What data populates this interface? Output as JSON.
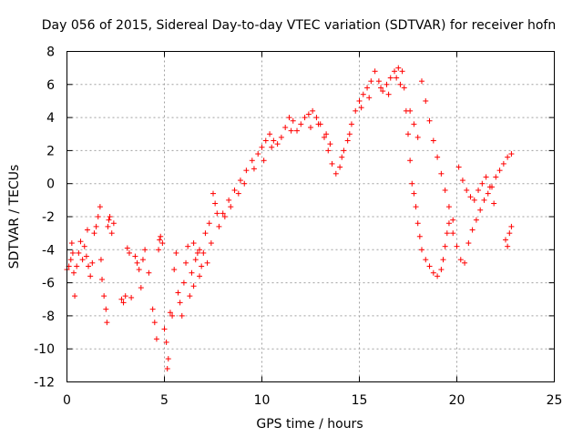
{
  "chart_data": {
    "type": "scatter",
    "title": "Day 056 of 2015, Sidereal Day-to-day VTEC variation (SDTVAR) for receiver hofn",
    "xlabel": "GPS time / hours",
    "ylabel": "SDTVAR / TECUs",
    "xlim": [
      0,
      25
    ],
    "ylim": [
      -12,
      8
    ],
    "x_ticks": [
      0,
      5,
      10,
      15,
      20,
      25
    ],
    "y_ticks": [
      -12,
      -10,
      -8,
      -6,
      -4,
      -2,
      0,
      2,
      4,
      6,
      8
    ],
    "grid": true,
    "marker": "+",
    "color": "#ff0000",
    "series": [
      {
        "name": "SDTVAR hofn",
        "points": [
          [
            0.0,
            -5.2
          ],
          [
            0.1,
            -5.0
          ],
          [
            0.2,
            -4.6
          ],
          [
            0.3,
            -4.2
          ],
          [
            0.35,
            -5.4
          ],
          [
            0.4,
            -6.8
          ],
          [
            0.5,
            -5.0
          ],
          [
            0.6,
            -4.2
          ],
          [
            0.7,
            -3.5
          ],
          [
            0.8,
            -4.6
          ],
          [
            0.9,
            -3.8
          ],
          [
            1.0,
            -4.4
          ],
          [
            1.1,
            -5.0
          ],
          [
            1.2,
            -5.6
          ],
          [
            1.3,
            -4.8
          ],
          [
            1.4,
            -3.0
          ],
          [
            1.5,
            -2.6
          ],
          [
            1.6,
            -2.0
          ],
          [
            1.7,
            -1.4
          ],
          [
            1.75,
            -4.6
          ],
          [
            1.8,
            -5.8
          ],
          [
            1.9,
            -6.8
          ],
          [
            2.0,
            -7.6
          ],
          [
            2.05,
            -8.4
          ],
          [
            2.1,
            -2.6
          ],
          [
            2.15,
            -2.2
          ],
          [
            2.2,
            -2.0
          ],
          [
            2.3,
            -3.0
          ],
          [
            2.8,
            -7.0
          ],
          [
            2.9,
            -7.2
          ],
          [
            3.0,
            -6.8
          ],
          [
            3.1,
            -3.9
          ],
          [
            3.2,
            -4.2
          ],
          [
            3.5,
            -4.4
          ],
          [
            3.6,
            -4.8
          ],
          [
            3.7,
            -5.2
          ],
          [
            3.8,
            -6.3
          ],
          [
            3.9,
            -4.6
          ],
          [
            4.0,
            -4.0
          ],
          [
            4.2,
            -5.4
          ],
          [
            4.4,
            -7.6
          ],
          [
            4.5,
            -8.4
          ],
          [
            4.6,
            -9.4
          ],
          [
            4.7,
            -4.0
          ],
          [
            4.75,
            -3.4
          ],
          [
            4.8,
            -3.2
          ],
          [
            4.9,
            -3.6
          ],
          [
            5.0,
            -8.8
          ],
          [
            5.1,
            -9.6
          ],
          [
            5.15,
            -11.2
          ],
          [
            5.2,
            -10.6
          ],
          [
            5.3,
            -7.8
          ],
          [
            5.4,
            -8.0
          ],
          [
            5.5,
            -5.2
          ],
          [
            5.6,
            -4.2
          ],
          [
            5.7,
            -6.6
          ],
          [
            5.8,
            -7.2
          ],
          [
            5.9,
            -8.0
          ],
          [
            6.0,
            -6.0
          ],
          [
            6.1,
            -4.8
          ],
          [
            6.2,
            -3.8
          ],
          [
            6.3,
            -6.8
          ],
          [
            6.4,
            -5.4
          ],
          [
            6.5,
            -6.2
          ],
          [
            6.6,
            -4.6
          ],
          [
            6.7,
            -4.2
          ],
          [
            6.8,
            -5.6
          ],
          [
            6.9,
            -5.0
          ],
          [
            7.0,
            -4.2
          ],
          [
            7.2,
            -4.8
          ],
          [
            7.4,
            -3.6
          ],
          [
            7.5,
            -0.6
          ],
          [
            7.6,
            -1.2
          ],
          [
            7.8,
            -2.6
          ],
          [
            8.0,
            -1.8
          ],
          [
            8.3,
            -1.0
          ],
          [
            8.6,
            -0.4
          ],
          [
            8.9,
            0.2
          ],
          [
            9.2,
            0.8
          ],
          [
            9.5,
            1.4
          ],
          [
            9.8,
            1.8
          ],
          [
            10.0,
            2.2
          ],
          [
            10.2,
            2.6
          ],
          [
            10.4,
            3.0
          ],
          [
            10.6,
            2.6
          ],
          [
            10.8,
            2.4
          ],
          [
            11.0,
            2.8
          ],
          [
            11.2,
            3.4
          ],
          [
            11.4,
            4.0
          ],
          [
            11.6,
            3.8
          ],
          [
            11.8,
            3.2
          ],
          [
            12.0,
            3.6
          ],
          [
            12.2,
            4.0
          ],
          [
            12.4,
            4.2
          ],
          [
            12.6,
            4.4
          ],
          [
            12.8,
            4.0
          ],
          [
            13.0,
            3.6
          ],
          [
            13.2,
            2.8
          ],
          [
            13.4,
            2.0
          ],
          [
            13.6,
            1.2
          ],
          [
            13.8,
            0.6
          ],
          [
            14.0,
            1.0
          ],
          [
            14.2,
            2.0
          ],
          [
            14.4,
            2.6
          ],
          [
            14.6,
            3.6
          ],
          [
            14.8,
            4.4
          ],
          [
            15.0,
            5.0
          ],
          [
            15.2,
            5.4
          ],
          [
            15.4,
            5.8
          ],
          [
            15.6,
            6.2
          ],
          [
            15.8,
            6.8
          ],
          [
            16.0,
            6.2
          ],
          [
            16.2,
            5.6
          ],
          [
            16.4,
            6.0
          ],
          [
            16.6,
            6.4
          ],
          [
            16.8,
            6.8
          ],
          [
            17.0,
            7.0
          ],
          [
            17.2,
            6.8
          ],
          [
            17.3,
            5.8
          ],
          [
            17.4,
            4.4
          ],
          [
            17.5,
            3.0
          ],
          [
            17.6,
            1.4
          ],
          [
            17.7,
            0.0
          ],
          [
            17.8,
            -0.6
          ],
          [
            17.9,
            -1.4
          ],
          [
            18.0,
            -2.4
          ],
          [
            18.1,
            -3.2
          ],
          [
            18.2,
            -4.0
          ],
          [
            18.4,
            -4.6
          ],
          [
            18.6,
            -5.0
          ],
          [
            18.8,
            -5.4
          ],
          [
            19.0,
            -5.6
          ],
          [
            19.2,
            -5.2
          ],
          [
            19.3,
            -4.6
          ],
          [
            19.4,
            -3.8
          ],
          [
            19.5,
            -3.0
          ],
          [
            19.6,
            -2.4
          ],
          [
            19.8,
            -3.0
          ],
          [
            20.0,
            -3.8
          ],
          [
            20.2,
            -4.6
          ],
          [
            20.4,
            -4.8
          ],
          [
            20.6,
            -3.6
          ],
          [
            20.8,
            -2.8
          ],
          [
            21.0,
            -2.2
          ],
          [
            21.2,
            -1.6
          ],
          [
            21.4,
            -1.0
          ],
          [
            21.6,
            -0.6
          ],
          [
            21.8,
            -0.2
          ],
          [
            22.0,
            0.4
          ],
          [
            22.2,
            0.8
          ],
          [
            22.4,
            1.2
          ],
          [
            22.6,
            1.6
          ],
          [
            22.8,
            1.8
          ],
          [
            22.5,
            -3.4
          ],
          [
            22.6,
            -3.8
          ],
          [
            22.7,
            -3.0
          ],
          [
            22.8,
            -2.6
          ],
          [
            18.2,
            6.2
          ],
          [
            18.4,
            5.0
          ],
          [
            18.6,
            3.8
          ],
          [
            18.8,
            2.6
          ],
          [
            19.0,
            1.6
          ],
          [
            19.2,
            0.6
          ],
          [
            19.4,
            -0.4
          ],
          [
            19.6,
            -1.4
          ],
          [
            19.8,
            -2.2
          ],
          [
            17.6,
            4.4
          ],
          [
            17.8,
            3.6
          ],
          [
            18.0,
            2.8
          ],
          [
            16.9,
            6.4
          ],
          [
            20.1,
            1.0
          ],
          [
            20.3,
            0.2
          ],
          [
            20.5,
            -0.4
          ],
          [
            20.7,
            -0.8
          ],
          [
            20.9,
            -1.0
          ],
          [
            21.1,
            -0.4
          ],
          [
            21.3,
            0.0
          ],
          [
            21.5,
            0.4
          ],
          [
            21.7,
            -0.2
          ],
          [
            21.9,
            -1.2
          ],
          [
            6.5,
            -3.6
          ],
          [
            6.8,
            -4.0
          ],
          [
            7.1,
            -3.0
          ],
          [
            7.3,
            -2.4
          ],
          [
            7.7,
            -1.8
          ],
          [
            8.1,
            -2.0
          ],
          [
            8.4,
            -1.4
          ],
          [
            8.8,
            -0.6
          ],
          [
            9.1,
            0.0
          ],
          [
            9.6,
            0.9
          ],
          [
            10.1,
            1.4
          ],
          [
            10.5,
            2.2
          ],
          [
            11.5,
            3.2
          ],
          [
            12.5,
            3.4
          ],
          [
            13.5,
            2.4
          ],
          [
            14.1,
            1.6
          ],
          [
            14.5,
            3.0
          ],
          [
            15.1,
            4.6
          ],
          [
            15.5,
            5.2
          ],
          [
            16.1,
            5.8
          ],
          [
            16.5,
            5.4
          ],
          [
            17.1,
            6.0
          ],
          [
            13.3,
            3.0
          ],
          [
            12.9,
            3.6
          ],
          [
            3.3,
            -6.9
          ],
          [
            1.05,
            -2.8
          ],
          [
            0.25,
            -3.6
          ],
          [
            2.4,
            -2.4
          ]
        ]
      }
    ]
  }
}
